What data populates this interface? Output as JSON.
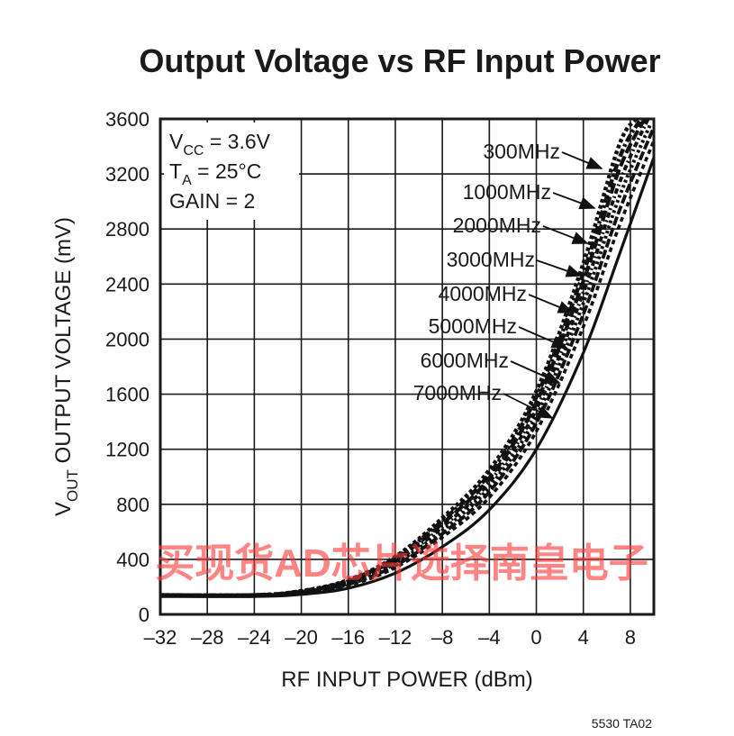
{
  "chart_data": {
    "type": "line",
    "title": "Output Voltage vs RF Input Power",
    "xlabel": "RF INPUT POWER (dBm)",
    "ylabel": "VOUT OUTPUT VOLTAGE (mV)",
    "xlim": [
      -32,
      10
    ],
    "ylim": [
      0,
      3600
    ],
    "xticks": [
      -32,
      -28,
      -24,
      -20,
      -16,
      -12,
      -8,
      -4,
      0,
      4,
      8
    ],
    "xtick_labels": [
      "–32",
      "–28",
      "–24",
      "–20",
      "–16",
      "–12",
      "–8",
      "–4",
      "0",
      "4",
      "8"
    ],
    "yticks": [
      0,
      400,
      800,
      1200,
      1600,
      2000,
      2400,
      2800,
      3200,
      3600
    ],
    "grid": true,
    "conditions": [
      {
        "main": "V",
        "sub": "CC",
        "rest": " = 3.6V"
      },
      {
        "main": "T",
        "sub": "A",
        "rest": " = 25°C"
      },
      {
        "main": "GAIN = 2",
        "sub": "",
        "rest": ""
      }
    ],
    "series": [
      {
        "name": "300MHz",
        "x": [
          -32,
          -24,
          -20,
          -16,
          -12,
          -8,
          -4,
          0,
          4,
          7,
          8.5
        ],
        "y": [
          140,
          140,
          170,
          250,
          420,
          700,
          1050,
          1620,
          2550,
          3400,
          3600
        ]
      },
      {
        "name": "1000MHz",
        "x": [
          -32,
          -24,
          -20,
          -16,
          -12,
          -8,
          -4,
          0,
          4,
          7,
          8.9
        ],
        "y": [
          140,
          140,
          168,
          245,
          410,
          680,
          1020,
          1580,
          2480,
          3300,
          3600
        ]
      },
      {
        "name": "2000MHz",
        "x": [
          -32,
          -24,
          -20,
          -16,
          -12,
          -8,
          -4,
          0,
          4,
          7,
          9.2
        ],
        "y": [
          140,
          140,
          165,
          240,
          400,
          660,
          990,
          1540,
          2420,
          3220,
          3600
        ]
      },
      {
        "name": "3000MHz",
        "x": [
          -32,
          -24,
          -20,
          -16,
          -12,
          -8,
          -4,
          0,
          4,
          7,
          9.5
        ],
        "y": [
          140,
          140,
          162,
          232,
          385,
          635,
          960,
          1490,
          2340,
          3120,
          3600
        ]
      },
      {
        "name": "4000MHz",
        "x": [
          -32,
          -24,
          -20,
          -16,
          -12,
          -8,
          -4,
          0,
          4,
          7,
          9.7
        ],
        "y": [
          140,
          140,
          160,
          225,
          370,
          610,
          925,
          1440,
          2260,
          3020,
          3560
        ]
      },
      {
        "name": "5000MHz",
        "x": [
          -32,
          -24,
          -20,
          -16,
          -12,
          -8,
          -4,
          0,
          4,
          7,
          9.9
        ],
        "y": [
          140,
          140,
          157,
          218,
          355,
          585,
          890,
          1390,
          2180,
          2920,
          3520
        ]
      },
      {
        "name": "6000MHz",
        "x": [
          -32,
          -24,
          -20,
          -16,
          -12,
          -8,
          -4,
          0,
          4,
          7,
          10
        ],
        "y": [
          140,
          140,
          154,
          210,
          340,
          560,
          850,
          1330,
          2090,
          2810,
          3440
        ]
      },
      {
        "name": "7000MHz",
        "x": [
          -32,
          -24,
          -20,
          -16,
          -12,
          -8,
          -4,
          0,
          4,
          7,
          10
        ],
        "y": [
          130,
          130,
          145,
          190,
          300,
          490,
          760,
          1200,
          1900,
          2600,
          3320
        ]
      }
    ],
    "annotations": [
      "5530 TA02"
    ],
    "watermark": "买现货AD芯片选择南皇电子"
  }
}
